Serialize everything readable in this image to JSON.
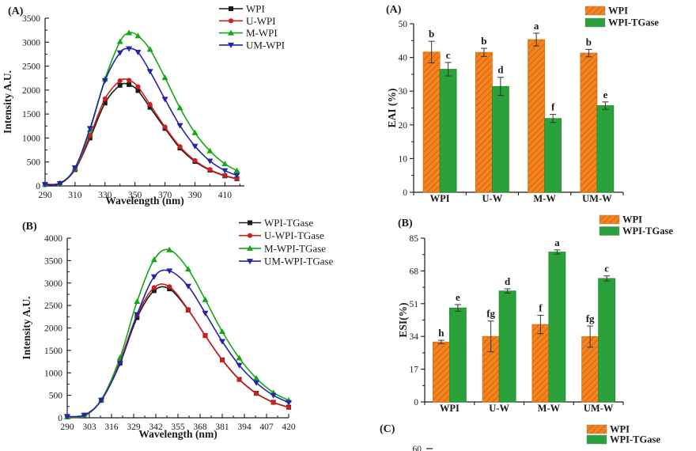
{
  "figure": {
    "background": "#ffffff"
  },
  "colors": {
    "axis": "#1a1a1a",
    "error_bar": "#333333",
    "bar_orange": "#f5821f",
    "bar_orange_hatch": "#b85c00",
    "bar_orange_edge": "#d96c0a",
    "bar_green": "#2aa13a",
    "bar_green_edge": "#1f8a2e",
    "line_black": "#1a1a1a",
    "line_red": "#cc2020",
    "line_green": "#12a812",
    "line_blue": "#2424a8"
  },
  "chart_data": [
    {
      "id": "line-a",
      "type": "line",
      "panel_label": "(A)",
      "xlabel": "Wavelength (nm)",
      "ylabel": "Intensity A.U.",
      "xlim": [
        290,
        423
      ],
      "ylim": [
        0,
        3500
      ],
      "xticks": [
        290,
        310,
        330,
        350,
        370,
        390,
        410
      ],
      "yticks": [
        0,
        500,
        1000,
        1500,
        2000,
        2500,
        3000,
        3500
      ],
      "x_minor_step": 10,
      "y_minor_step": 250,
      "tick_direction": "in",
      "grid": false,
      "legend_position": "top-right",
      "x": [
        290,
        300,
        310,
        320,
        330,
        340,
        346,
        352,
        360,
        370,
        380,
        390,
        400,
        410,
        418
      ],
      "series": [
        {
          "name": "WPI",
          "color": "#1a1a1a",
          "marker": "square",
          "values": [
            30,
            50,
            340,
            1000,
            1730,
            2100,
            2115,
            1990,
            1640,
            1200,
            790,
            510,
            330,
            210,
            150
          ]
        },
        {
          "name": "U-WPI",
          "color": "#cc2020",
          "marker": "circle",
          "values": [
            40,
            60,
            350,
            1050,
            1820,
            2195,
            2205,
            2070,
            1700,
            1230,
            820,
            530,
            340,
            215,
            155
          ]
        },
        {
          "name": "M-WPI",
          "color": "#12a812",
          "marker": "triangle-up",
          "values": [
            30,
            50,
            370,
            1170,
            2230,
            3010,
            3195,
            3130,
            2850,
            2260,
            1630,
            1110,
            730,
            460,
            320
          ]
        },
        {
          "name": "UM-WPI",
          "color": "#2424a8",
          "marker": "triangle-down",
          "values": [
            30,
            50,
            380,
            1200,
            2200,
            2780,
            2865,
            2790,
            2390,
            1810,
            1260,
            830,
            520,
            320,
            220
          ]
        }
      ]
    },
    {
      "id": "line-b",
      "type": "line",
      "panel_label": "(B)",
      "xlabel": "Wavelength (nm)",
      "ylabel": "Intensity A.U.",
      "xlim": [
        290,
        420
      ],
      "ylim": [
        0,
        4000
      ],
      "xticks": [
        290,
        303,
        316,
        329,
        342,
        355,
        368,
        381,
        394,
        407,
        420
      ],
      "yticks": [
        0,
        500,
        1000,
        1500,
        2000,
        2500,
        3000,
        3500,
        4000
      ],
      "x_minor_step": 6.5,
      "y_minor_step": 250,
      "tick_direction": "in",
      "grid": false,
      "legend_position": "top-right",
      "x": [
        290,
        300,
        310,
        321,
        331,
        341,
        350,
        361,
        371,
        381,
        391,
        401,
        411,
        420
      ],
      "series": [
        {
          "name": "WPI-TGase",
          "color": "#1a1a1a",
          "marker": "square",
          "values": [
            20,
            40,
            390,
            1220,
            2230,
            2830,
            2870,
            2400,
            1830,
            1290,
            855,
            545,
            345,
            235
          ]
        },
        {
          "name": "U-WPI-TGase",
          "color": "#cc2020",
          "marker": "circle",
          "values": [
            20,
            40,
            400,
            1270,
            2290,
            2900,
            2920,
            2410,
            1830,
            1285,
            850,
            540,
            340,
            230
          ]
        },
        {
          "name": "M-WPI-TGase",
          "color": "#12a812",
          "marker": "triangle-up",
          "values": [
            20,
            50,
            400,
            1340,
            2590,
            3520,
            3740,
            3310,
            2630,
            1920,
            1330,
            880,
            560,
            390
          ]
        },
        {
          "name": "UM-WPI-TGase",
          "color": "#2424a8",
          "marker": "triangle-down",
          "values": [
            30,
            60,
            390,
            1210,
            2300,
            3140,
            3270,
            2930,
            2330,
            1700,
            1170,
            780,
            500,
            340
          ]
        }
      ]
    },
    {
      "id": "bar-a",
      "type": "bar",
      "panel_label": "(A)",
      "ylabel": "EAI (%)",
      "ylim": [
        0,
        50
      ],
      "yticks": [
        0,
        10,
        20,
        30,
        40,
        50
      ],
      "y_minor_step": 5,
      "tick_direction": "out",
      "grid": false,
      "legend_position": "top-right",
      "categories": [
        "WPI",
        "U-W",
        "M-W",
        "UM-W"
      ],
      "series": [
        {
          "name": "WPI",
          "style": "hatched-orange",
          "values": [
            41.6,
            41.5,
            45.3,
            41.3
          ],
          "errors": [
            3.2,
            1.2,
            1.9,
            1.1
          ],
          "letters": [
            "b",
            "b",
            "a",
            "b"
          ]
        },
        {
          "name": "WPI-TGase",
          "style": "solid-green",
          "values": [
            36.5,
            31.4,
            21.9,
            25.7
          ],
          "errors": [
            2.0,
            2.7,
            1.2,
            1.1
          ],
          "letters": [
            "c",
            "d",
            "f",
            "e"
          ]
        }
      ]
    },
    {
      "id": "bar-b",
      "type": "bar",
      "panel_label": "(B)",
      "ylabel": "ESI(%)",
      "ylim": [
        0,
        85
      ],
      "yticks": [
        0,
        17,
        34,
        51,
        68,
        85
      ],
      "y_minor_step": 8.5,
      "tick_direction": "out",
      "grid": false,
      "legend_position": "top-right",
      "categories": [
        "WPI",
        "U-W",
        "M-W",
        "UM-W"
      ],
      "series": [
        {
          "name": "WPI",
          "style": "hatched-orange",
          "values": [
            31.1,
            34.0,
            40.2,
            33.9
          ],
          "errors": [
            0.9,
            8.0,
            4.8,
            5.5
          ],
          "letters": [
            "h",
            "fg",
            "f",
            "fg"
          ]
        },
        {
          "name": "WPI-TGase",
          "style": "solid-green",
          "values": [
            48.8,
            57.6,
            77.8,
            64.1
          ],
          "errors": [
            1.7,
            1.1,
            1.1,
            1.3
          ],
          "letters": [
            "e",
            "d",
            "a",
            "c"
          ]
        }
      ]
    },
    {
      "id": "bar-c",
      "type": "bar-partial",
      "panel_label": "(C)",
      "visible_ytick_label": "60",
      "series": [
        {
          "name": "WPI",
          "style": "hatched-orange"
        },
        {
          "name": "WPI-TGase",
          "style": "solid-green"
        }
      ]
    }
  ]
}
